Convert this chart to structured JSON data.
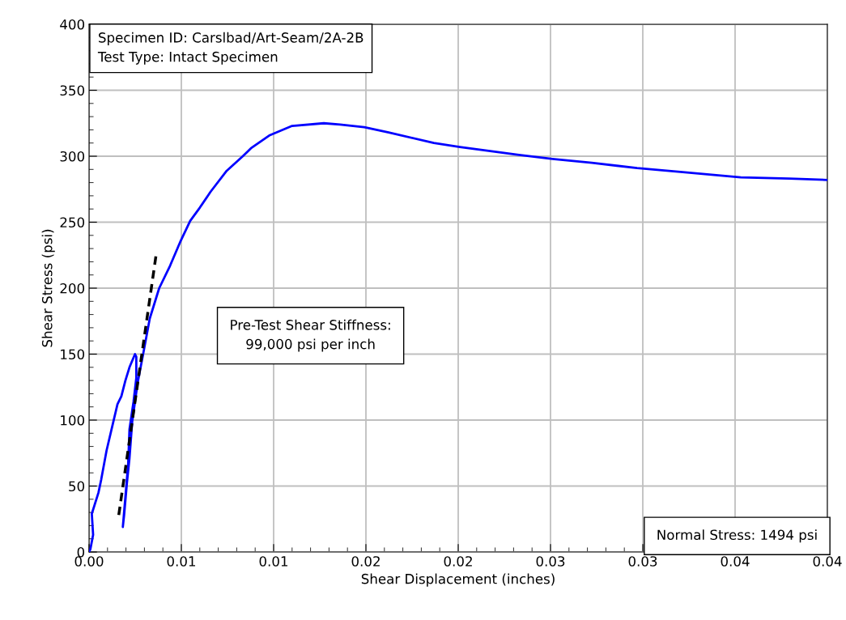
{
  "chart_data": {
    "type": "line",
    "xlabel": "Shear Displacement (inches)",
    "ylabel": "Shear Stress (psi)",
    "xlim": [
      0,
      0.04
    ],
    "ylim": [
      0,
      400
    ],
    "xticks": [
      {
        "value": 0,
        "label": "0.00"
      },
      {
        "value": 0.005,
        "label": "0.01"
      },
      {
        "value": 0.01,
        "label": "0.01"
      },
      {
        "value": 0.015,
        "label": "0.02"
      },
      {
        "value": 0.02,
        "label": "0.02"
      },
      {
        "value": 0.025,
        "label": "0.03"
      },
      {
        "value": 0.03,
        "label": "0.03"
      },
      {
        "value": 0.035,
        "label": "0.04"
      },
      {
        "value": 0.04,
        "label": "0.04"
      }
    ],
    "yticks": [
      0,
      50,
      100,
      150,
      200,
      250,
      300,
      350,
      400
    ],
    "grid": true,
    "legend": false,
    "marker": "none",
    "series": [
      {
        "color": "#0000ff",
        "line_style": "solid",
        "x": [
          0.0,
          7e-05,
          0.00022,
          0.00015,
          0.00051,
          0.00066,
          0.00095,
          0.00132,
          0.00154,
          0.00175,
          0.00197,
          0.00219,
          0.00249,
          0.00256,
          0.00256,
          0.00241,
          0.00219,
          0.00212,
          0.00197,
          0.00183,
          0.0019,
          0.00205,
          0.00219,
          0.00234,
          0.00263,
          0.00293,
          0.00329,
          0.0038,
          0.00439,
          0.00497,
          0.00548,
          0.006,
          0.00658,
          0.00746,
          0.00833,
          0.00877,
          0.0098,
          0.011,
          0.01272,
          0.0136,
          0.01491,
          0.01623,
          0.01868,
          0.02009,
          0.02165,
          0.02329,
          0.02511,
          0.02724,
          0.02969,
          0.03216,
          0.03531,
          0.03794,
          0.04
        ],
        "values": [
          0,
          2,
          13,
          29,
          45,
          55,
          77,
          99,
          112,
          118,
          130,
          140,
          150,
          148,
          132,
          114,
          93,
          67,
          42,
          19,
          28,
          52,
          71,
          99,
          128,
          150,
          177,
          200,
          217,
          236,
          251,
          261,
          273,
          289,
          300,
          306,
          316,
          323,
          325,
          324,
          322,
          318,
          310,
          307,
          304,
          301,
          298,
          295,
          291,
          288,
          284,
          283,
          282
        ]
      },
      {
        "color": "#000000",
        "line_style": "dashed",
        "x": [
          0.00161,
          0.00363
        ],
        "values": [
          28,
          225
        ]
      }
    ],
    "annotations": [
      "Specimen ID: Carslbad/Art-Seam/2A-2B\nTest Type: Intact Specimen",
      "Pre-Test Shear Stiffness:\n99,000 psi per inch",
      "Normal Stress: 1494 psi"
    ]
  }
}
